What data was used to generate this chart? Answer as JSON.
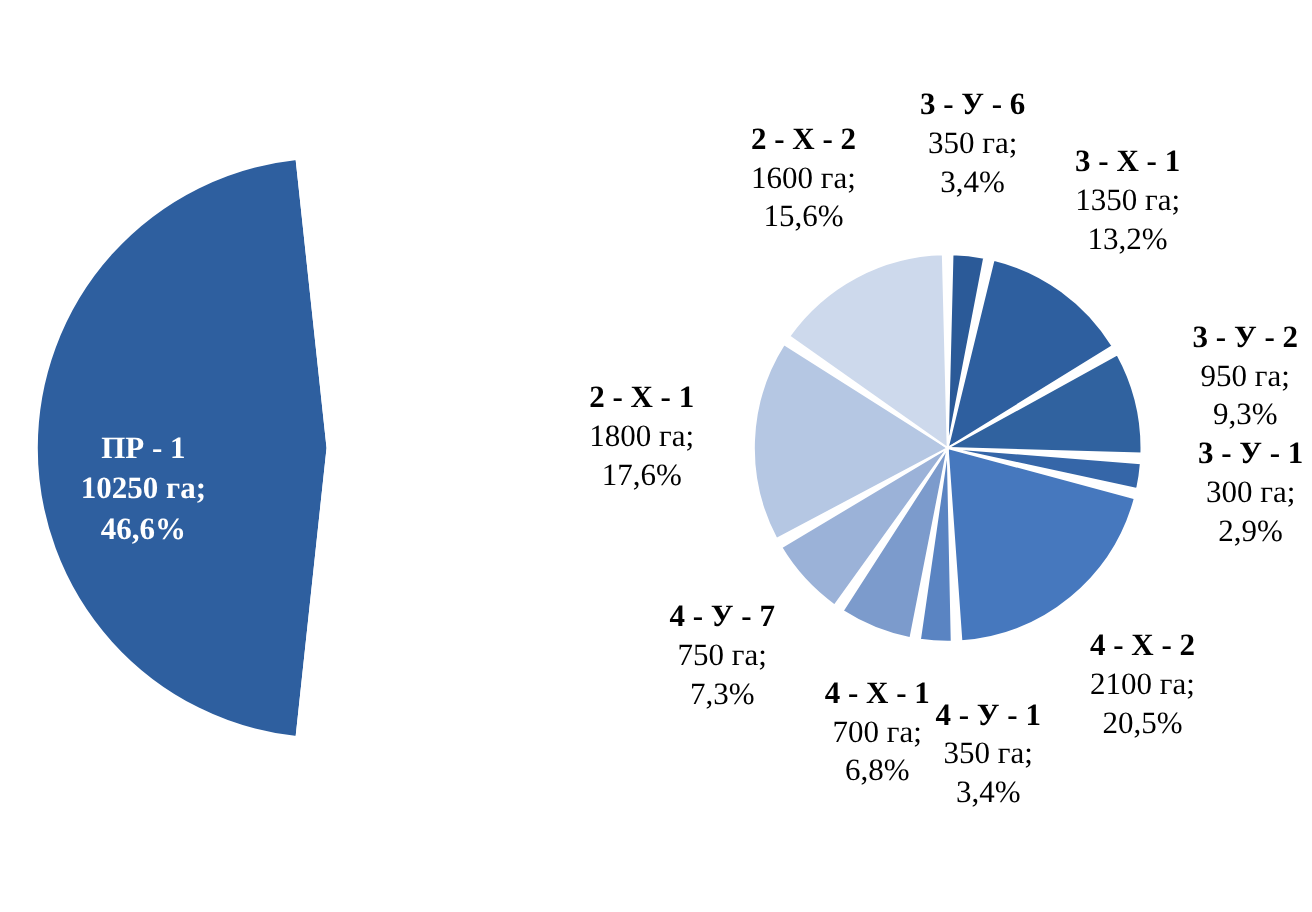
{
  "chart_data": [
    {
      "type": "pie",
      "categories": [
        "ПР - 1",
        null
      ],
      "values": [
        46.6,
        53.4
      ],
      "colors": [
        "#2e5f9f",
        "#ffffff"
      ],
      "value_labels": [
        "10250 га; 46,6%",
        null
      ]
    },
    {
      "type": "pie",
      "categories": [
        "3 - У - 6",
        "3 - Х - 1",
        "3 - У - 2",
        "3 - У - 1",
        "4 - Х - 2",
        "4 - У - 1",
        "4 - Х - 1",
        "4 - У - 7",
        "2 - Х - 1",
        "2 - Х - 2"
      ],
      "values": [
        350,
        1350,
        950,
        300,
        2100,
        350,
        700,
        750,
        1800,
        1600
      ],
      "colors": [
        "#2b5a98",
        "#2e5f9f",
        "#30629f",
        "#3566a8",
        "#4678be",
        "#5a84c2",
        "#7c9bcc",
        "#9bb2d8",
        "#b5c7e3",
        "#cdd9ec"
      ],
      "value_labels": [
        "350 га; 3,4%",
        "1350 га; 13,2%",
        "950 га; 9,3%",
        "300 га; 2,9%",
        "2100 га; 20,5%",
        "350 га; 3,4%",
        "700 га; 6,8%",
        "750 га; 7,3%",
        "1800 га; 17,6%",
        "1600 га; 15,6%"
      ]
    }
  ]
}
